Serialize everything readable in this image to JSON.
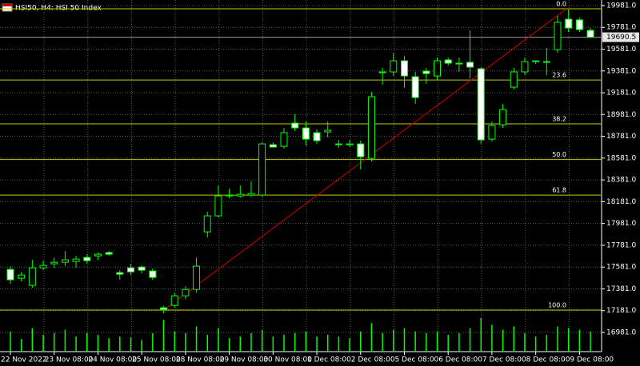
{
  "chart_data": {
    "type": "candlestick",
    "title": "HSI50, H4: HSI 50 Index",
    "categories": [
      "22 Nov 2022",
      null,
      null,
      null,
      "23 Nov 08:00",
      null,
      null,
      null,
      "24 Nov 08:00",
      null,
      null,
      null,
      "25 Nov 08:00",
      null,
      null,
      null,
      "28 Nov 08:00",
      null,
      null,
      null,
      "29 Nov 08:00",
      null,
      null,
      null,
      "30 Nov 08:00",
      null,
      null,
      null,
      "1 Dec 08:00",
      null,
      null,
      null,
      "2 Dec 08:00",
      null,
      null,
      null,
      "5 Dec 08:00",
      null,
      null,
      null,
      "6 Dec 08:00",
      null,
      null,
      null,
      "7 Dec 08:00",
      null,
      null,
      null,
      "8 Dec 08:00",
      null,
      null,
      null,
      "9 Dec 08:00",
      null
    ],
    "open": [
      17559,
      17479,
      17413,
      17574,
      17611,
      17625,
      17633,
      17669,
      17684,
      17714,
      17530,
      17574,
      17581,
      17545,
      17207,
      17229,
      17317,
      17376,
      17904,
      18051,
      18234,
      18234,
      18242,
      18242,
      18704,
      18689,
      18902,
      18858,
      18814,
      18821,
      18704,
      18711,
      18711,
      18579,
      19364,
      19372,
      19474,
      19328,
      19379,
      19335,
      19482,
      19445,
      19460,
      19401,
      18755,
      18887,
      19232,
      19372,
      19467,
      19460,
      19577,
      19856,
      19849,
      19753
    ],
    "high": [
      17589,
      17537,
      17647,
      17640,
      17669,
      17728,
      17684,
      17699,
      17714,
      17728,
      17552,
      17611,
      17596,
      17567,
      17222,
      17347,
      17405,
      17669,
      18088,
      18330,
      18300,
      18330,
      18367,
      18726,
      18726,
      18858,
      18983,
      18917,
      18843,
      18917,
      18748,
      18748,
      18741,
      19188,
      19408,
      19548,
      19518,
      19372,
      19408,
      19504,
      19504,
      19504,
      19753,
      19416,
      18917,
      19078,
      19408,
      19504,
      19474,
      19592,
      19885,
      19944,
      19871,
      19775
    ],
    "low": [
      17427,
      17449,
      17391,
      17552,
      17574,
      17589,
      17574,
      17611,
      17647,
      17684,
      17464,
      17508,
      17523,
      17464,
      17156,
      17207,
      17288,
      17347,
      17853,
      18036,
      18212,
      18220,
      18227,
      18227,
      18682,
      18667,
      18829,
      18697,
      18711,
      18770,
      18675,
      18682,
      18477,
      18550,
      19254,
      19335,
      19225,
      19078,
      19262,
      19298,
      19430,
      19372,
      19313,
      18711,
      18733,
      18858,
      19210,
      19342,
      19445,
      19342,
      19548,
      19739,
      19739,
      19680
    ],
    "close": [
      17464,
      17508,
      17574,
      17596,
      17625,
      17647,
      17655,
      17640,
      17699,
      17699,
      17515,
      17537,
      17552,
      17486,
      17193,
      17317,
      17376,
      17589,
      18051,
      18234,
      18242,
      18249,
      18256,
      18711,
      18682,
      18814,
      18858,
      18755,
      18741,
      18836,
      18711,
      18704,
      18594,
      19144,
      19372,
      19474,
      19335,
      19137,
      19357,
      19474,
      19452,
      19452,
      19416,
      18748,
      18880,
      19027,
      19372,
      19467,
      19474,
      19467,
      19827,
      19775,
      19761,
      19690.5
    ],
    "volumes": [
      24,
      15,
      28,
      20,
      22,
      26,
      18,
      22,
      20,
      16,
      18,
      17,
      14,
      22,
      38,
      24,
      22,
      30,
      20,
      28,
      16,
      18,
      22,
      26,
      18,
      20,
      22,
      24,
      18,
      20,
      18,
      16,
      24,
      34,
      22,
      26,
      28,
      24,
      22,
      24,
      20,
      22,
      28,
      40,
      32,
      26,
      30,
      22,
      18,
      20,
      30,
      28,
      26,
      24
    ],
    "current_price": 19690.5,
    "ylim": [
      16805,
      20032
    ],
    "yticks": [
      {
        "value": 16981,
        "label": "16981.0"
      },
      {
        "value": 17181,
        "label": "17181.0"
      },
      {
        "value": 17381,
        "label": "17381.0"
      },
      {
        "value": 17581,
        "label": "17581.0"
      },
      {
        "value": 17781,
        "label": "17781.0"
      },
      {
        "value": 17981,
        "label": "17981.0"
      },
      {
        "value": 18181,
        "label": "18181.0"
      },
      {
        "value": 18381,
        "label": "18381.0"
      },
      {
        "value": 18581,
        "label": "18581.0"
      },
      {
        "value": 18781,
        "label": "18781.0"
      },
      {
        "value": 18981,
        "label": "18981.0"
      },
      {
        "value": 19181,
        "label": "19181.0"
      },
      {
        "value": 19381,
        "label": "19381.0"
      },
      {
        "value": 19581,
        "label": "19581.0"
      },
      {
        "value": 19781,
        "label": "19781.0"
      },
      {
        "value": 19981,
        "label": "19981.0"
      }
    ],
    "fibonacci": [
      {
        "label": "0.0",
        "value": 19951
      },
      {
        "label": "23.6",
        "value": 19298
      },
      {
        "label": "38.2",
        "value": 18895
      },
      {
        "label": "50.0",
        "value": 18568
      },
      {
        "label": "61.8",
        "value": 18242
      },
      {
        "label": "100.0",
        "value": 17186
      }
    ],
    "trend_line": [
      17186,
      19951
    ],
    "grid": true,
    "colors": {
      "wick": "#00ff00",
      "bull_body": "#000000",
      "bear_body": "#ffffff",
      "fib": "#c8c800",
      "trend": "#d00000",
      "grid": "#5a5a5a",
      "current": "#9a9a9a"
    }
  }
}
